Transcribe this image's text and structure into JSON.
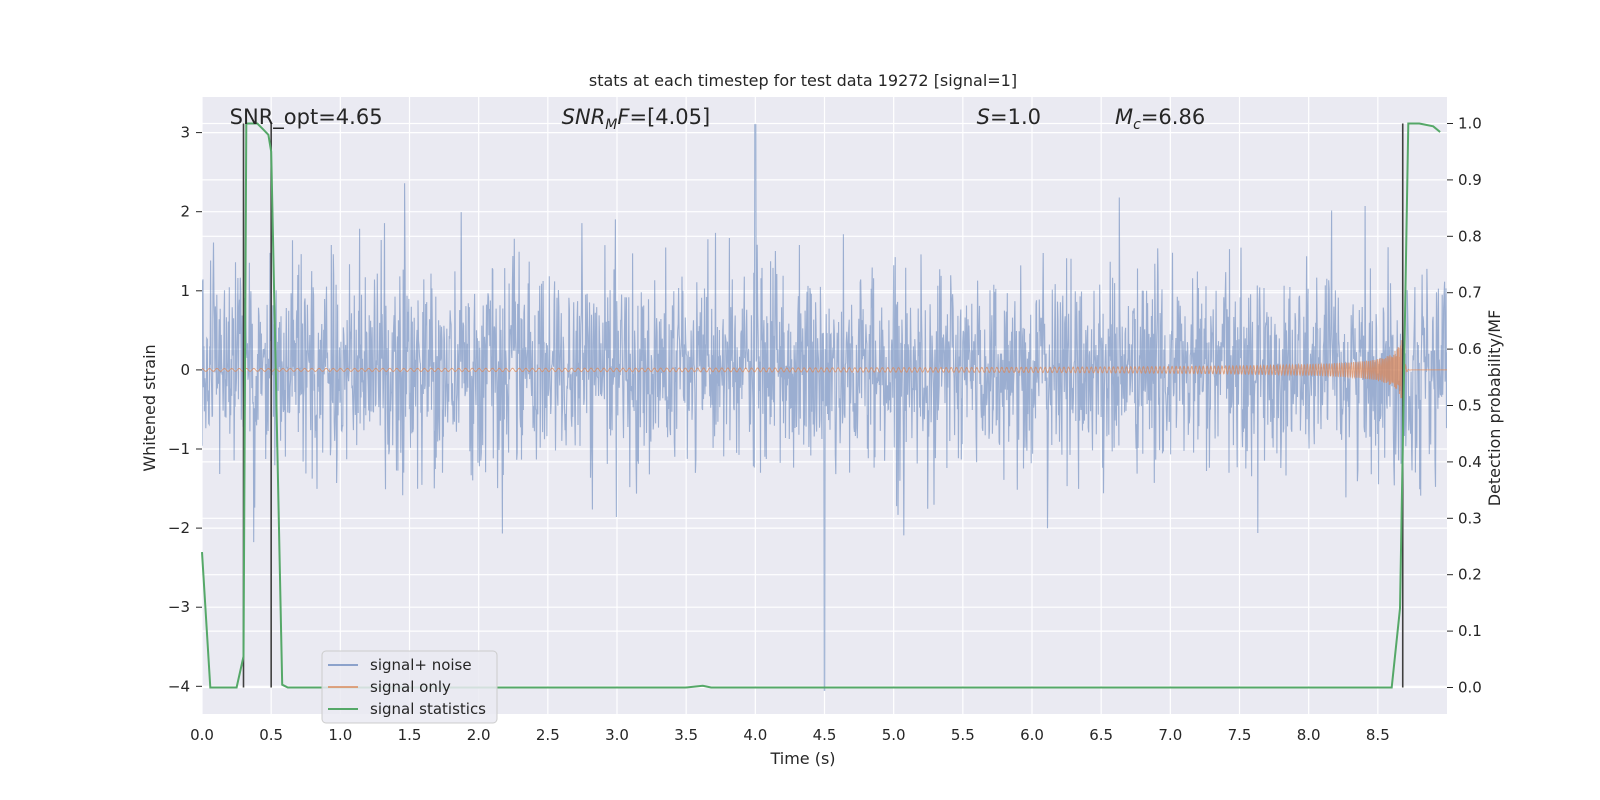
{
  "chart_data": {
    "type": "line",
    "title": "stats at each timestep for test data 19272 [signal=1]",
    "xlabel": "Time (s)",
    "ylabel": "Whitened strain",
    "y2label": "Detection probability/MF",
    "xlim": [
      0.0,
      9.0
    ],
    "ylim": [
      -4.35,
      3.45
    ],
    "y2lim": [
      -0.047,
      1.047
    ],
    "xticks": [
      "0.0",
      "0.5",
      "1.0",
      "1.5",
      "2.0",
      "2.5",
      "3.0",
      "3.5",
      "4.0",
      "4.5",
      "5.0",
      "5.5",
      "6.0",
      "6.5",
      "7.0",
      "7.5",
      "8.0",
      "8.5"
    ],
    "yticks": [
      "3",
      "2",
      "1",
      "0",
      "−1",
      "−2",
      "−3",
      "−4"
    ],
    "y2ticks": [
      "1.0",
      "0.9",
      "0.8",
      "0.7",
      "0.6",
      "0.5",
      "0.4",
      "0.3",
      "0.2",
      "0.1",
      "0.0"
    ],
    "grid": true,
    "legend_position": "lower-left",
    "series": [
      {
        "name": "signal+ noise",
        "color": "#4c72b0",
        "kind": "noise",
        "t_start": 0.0,
        "t_end": 9.0,
        "band": [
          -1.3,
          1.5
        ],
        "extremes": {
          "max": 3.1,
          "min": -4.05
        }
      },
      {
        "name": "signal only",
        "color": "#dd8452",
        "kind": "chirp",
        "t_start": 0.0,
        "t_end": 9.0,
        "merger_time": 8.68,
        "peak_amplitude": 0.5
      },
      {
        "name": "signal statistics",
        "color": "#55a868",
        "kind": "probability",
        "x": [
          0.0,
          0.06,
          0.25,
          0.3,
          0.32,
          0.4,
          0.44,
          0.48,
          0.5,
          0.53,
          0.58,
          0.62,
          3.5,
          3.62,
          3.68,
          8.6,
          8.66,
          8.72,
          8.8,
          8.9,
          8.95
        ],
        "y": [
          0.24,
          0.0,
          0.0,
          0.055,
          1.0,
          1.0,
          0.99,
          0.98,
          0.95,
          0.6,
          0.005,
          0.0,
          0.0,
          0.003,
          0.0,
          0.0,
          0.14,
          1.0,
          1.0,
          0.995,
          0.985
        ]
      }
    ],
    "vertical_markers": [
      0.3,
      0.5,
      8.68
    ],
    "annotations": [
      {
        "text": "SNR_opt=4.65",
        "x": 0.2,
        "style": "plain"
      },
      {
        "text": "SNR",
        "sub": "M",
        "tail": "F=[4.05]",
        "x": 2.6,
        "style": "math"
      },
      {
        "text": "S",
        "tail": "=1.0",
        "x": 5.6,
        "style": "math"
      },
      {
        "text": "M",
        "sub": "c",
        "tail": "=6.86",
        "x": 6.6,
        "style": "math"
      }
    ]
  },
  "colors": {
    "axes_bg": "#eaeaf2",
    "grid": "#ffffff",
    "marker": "#404040"
  }
}
